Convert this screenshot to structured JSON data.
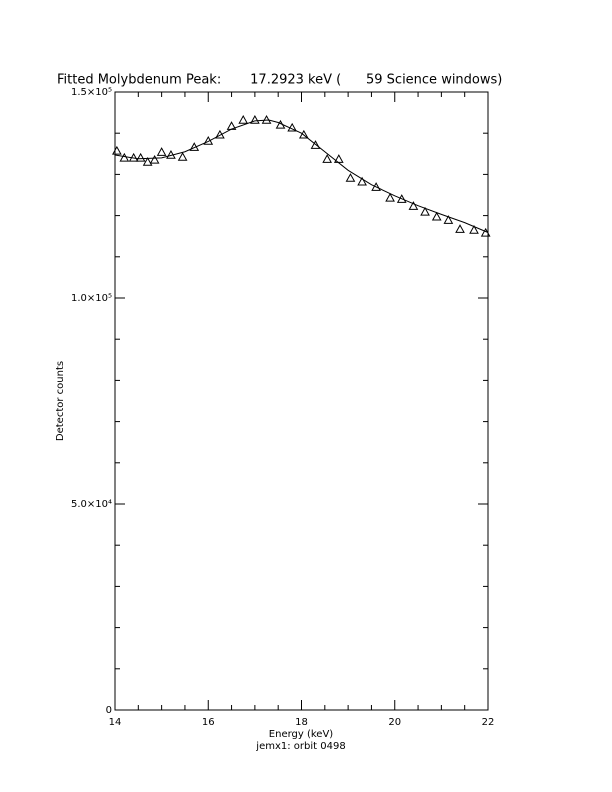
{
  "chart_data": {
    "type": "scatter",
    "title": "Fitted Molybdenum Peak:       17.2923 keV (      59 Science windows)",
    "xlabel": "Energy (keV)",
    "ylabel": "Detector counts",
    "subtitle": "jemx1: orbit 0498",
    "xlim": [
      14,
      22
    ],
    "xticks": [
      14,
      16,
      18,
      20,
      22
    ],
    "xminor": 4,
    "ylim": [
      0,
      150000
    ],
    "yticks": [
      0,
      {
        "value": 50000,
        "label": "5.0×10⁴"
      },
      {
        "value": 100000,
        "label": "1.0×10⁵"
      },
      {
        "value": 150000,
        "label": "1.5×10⁵"
      }
    ],
    "yminor": 5,
    "marker": "triangle",
    "color": "#000000",
    "x": [
      14.04,
      14.2,
      14.4,
      14.55,
      14.7,
      14.85,
      15.0,
      15.2,
      15.45,
      15.7,
      16.0,
      16.25,
      16.5,
      16.75,
      17.0,
      17.25,
      17.55,
      17.8,
      18.05,
      18.3,
      18.55,
      18.8,
      19.05,
      19.3,
      19.6,
      19.9,
      20.15,
      20.4,
      20.65,
      20.9,
      21.15,
      21.4,
      21.7,
      21.95
    ],
    "values": [
      135700,
      134000,
      134000,
      134000,
      133000,
      133500,
      135400,
      134700,
      134200,
      136600,
      138100,
      139600,
      141700,
      143200,
      143200,
      143200,
      142000,
      141300,
      139600,
      137100,
      133700,
      133700,
      129100,
      128200,
      126900,
      124300,
      124000,
      122300,
      120900,
      119700,
      118900,
      116700,
      116500,
      115800
    ],
    "fit": {
      "x": [
        14,
        14.5,
        15,
        15.5,
        16,
        16.5,
        17,
        17.3,
        17.5,
        18,
        18.5,
        19,
        19.5,
        20,
        20.5,
        21,
        21.5,
        22
      ],
      "values": [
        134700,
        133800,
        134000,
        135500,
        138000,
        141000,
        143000,
        143200,
        142600,
        140000,
        135500,
        131000,
        127500,
        124800,
        122400,
        120300,
        118300,
        115900
      ]
    }
  }
}
